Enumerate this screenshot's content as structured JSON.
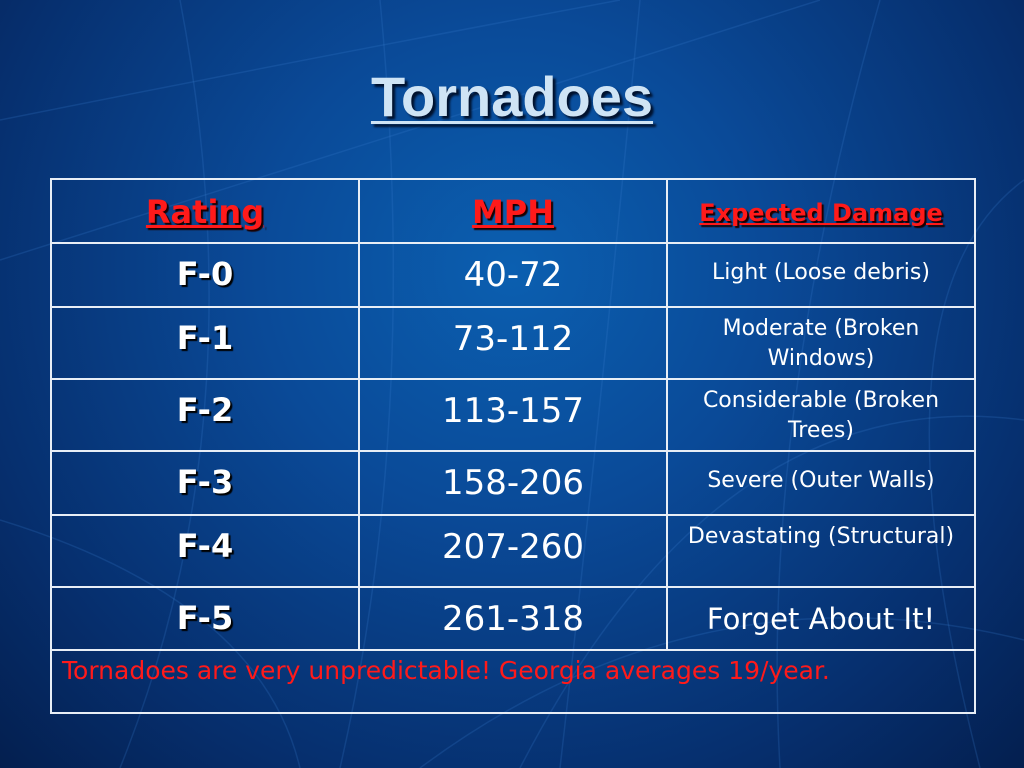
{
  "slide": {
    "title": "Tornadoes"
  },
  "table": {
    "headers": [
      "Rating",
      "MPH",
      "Expected Damage"
    ],
    "rows": [
      {
        "rating": "F-0",
        "mph": "40-72",
        "damage": "Light (Loose debris)"
      },
      {
        "rating": "F-1",
        "mph": "73-112",
        "damage": "Moderate (Broken Windows)"
      },
      {
        "rating": "F-2",
        "mph": "113-157",
        "damage": "Considerable (Broken Trees)"
      },
      {
        "rating": "F-3",
        "mph": "158-206",
        "damage": "Severe (Outer Walls)"
      },
      {
        "rating": "F-4",
        "mph": "207-260",
        "damage": "Devastating (Structural)"
      },
      {
        "rating": "F-5",
        "mph": "261-318",
        "damage": "Forget About It!"
      }
    ],
    "footer": "Tornadoes are very unpredictable! Georgia averages 19/year."
  },
  "colors": {
    "background": "#0a4a98",
    "header_text": "#ff1a1a",
    "footer_text": "#ff1a1a",
    "title_text": "#cfe4f5",
    "border": "#e8eef6"
  }
}
